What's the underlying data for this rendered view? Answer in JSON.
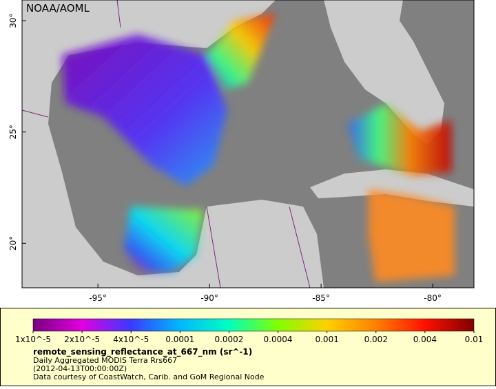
{
  "map": {
    "credit": "NOAA/AOML",
    "xlim": [
      -98.4,
      -78.15
    ],
    "ylim": [
      18.0,
      30.93
    ],
    "xticks": [
      {
        "value": -95,
        "label": "-95°"
      },
      {
        "value": -90,
        "label": "-90°"
      },
      {
        "value": -85,
        "label": "-85°"
      },
      {
        "value": -80,
        "label": "-80°"
      }
    ],
    "yticks": [
      {
        "value": 20,
        "label": "20°"
      },
      {
        "value": 25,
        "label": "25°"
      },
      {
        "value": 30,
        "label": "30°"
      }
    ]
  },
  "colorbar": {
    "ticks": [
      {
        "value": 1e-05,
        "label": "1x10^-5"
      },
      {
        "value": 2e-05,
        "label": "2x10^-5"
      },
      {
        "value": 4e-05,
        "label": "4x10^-5"
      },
      0.0001,
      0.0002,
      0.0004,
      0.001,
      0.002,
      0.004,
      0.01
    ],
    "colors": [
      "#7a0080",
      "#e000e0",
      "#3a3aff",
      "#00b8ff",
      "#00ffc0",
      "#80ff00",
      "#ffd000",
      "#ff8000",
      "#ff1000",
      "#800000"
    ]
  },
  "legend": {
    "variable": "remote_sensing_reflectance_at_667_nm (sr^-1)",
    "description": "Daily Aggregated MODIS Terra Rrs667",
    "date": "(2012-04-13T00:00:00Z)",
    "source": "Data courtesy of CoastWatch, Carib. and GoM Regional Node"
  }
}
